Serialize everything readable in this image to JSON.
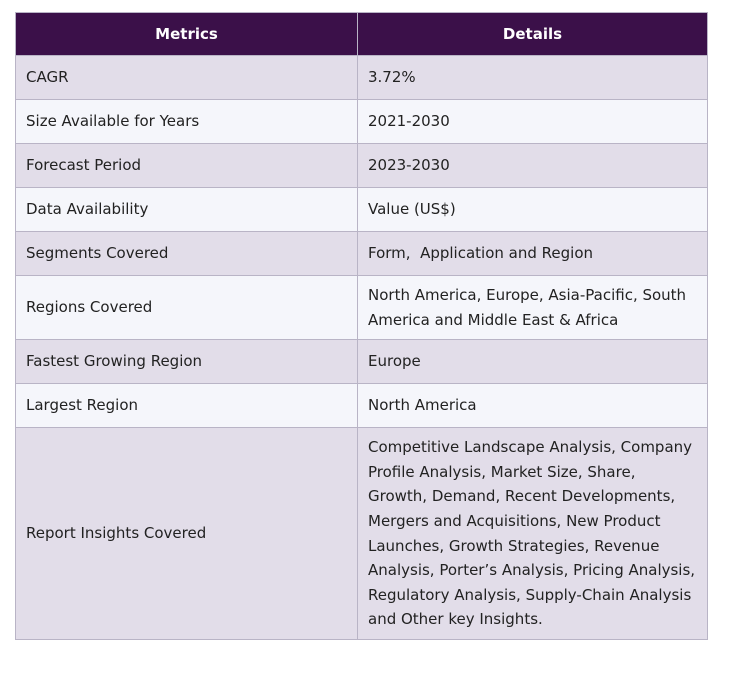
{
  "table": {
    "header": [
      "Metrics",
      "Details"
    ],
    "rows": [
      [
        "CAGR",
        "3.72%"
      ],
      [
        "Size Available for Years",
        "2021-2030"
      ],
      [
        "Forecast Period",
        "2023-2030"
      ],
      [
        "Data Availability",
        "Value (US$)"
      ],
      [
        "Segments Covered",
        "Form,  Application and Region"
      ],
      [
        "Regions Covered",
        "North America, Europe, Asia-Pacific, South America and Middle East & Africa"
      ],
      [
        "Fastest Growing Region",
        "Europe"
      ],
      [
        "Largest Region",
        "North America"
      ],
      [
        "Report Insights Covered",
        "Competitive Landscape Analysis, Company Profile Analysis, Market Size, Share, Growth, Demand, Recent Developments, Mergers and Acquisitions, New Product Launches, Growth Strategies, Revenue Analysis, Porter’s Analysis, Pricing Analysis, Regulatory Analysis, Supply-Chain Analysis and Other key Insights."
      ]
    ]
  }
}
